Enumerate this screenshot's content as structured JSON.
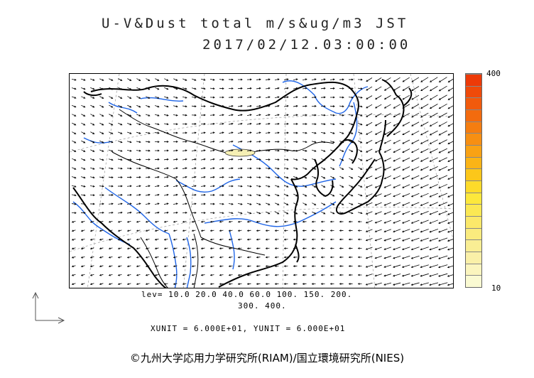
{
  "title": {
    "line1": "U-V&Dust total m/s&ug/m3 JST",
    "line2": "2017/02/12.03:00:00"
  },
  "legend": {
    "max_label": "400",
    "min_label": "10",
    "colors": [
      "#fafad2",
      "#fbf5be",
      "#faf0a8",
      "#f9ee94",
      "#faeb7e",
      "#fbe86a",
      "#fbe853",
      "#fce83c",
      "#fddb2a",
      "#fcc71a",
      "#fbb416",
      "#f9a214",
      "#f78f12",
      "#f57d10",
      "#f36b0e",
      "#f15a0c",
      "#ef4a0a",
      "#ed3a08"
    ]
  },
  "levels": {
    "line1": "lev= 10.0 20.0 40.0 60.0 100. 150. 200.",
    "line2": "300. 400."
  },
  "units": "XUNIT = 6.000E+01, YUNIT = 6.000E+01",
  "copyright": "©九州大学応用力学研究所(RIAM)/国立環境研究所(NIES)",
  "map": {
    "region": "East Asia",
    "dust_feature": "low-concentration dust patch over Gobi region",
    "dust_color": "#f6f0b4"
  }
}
